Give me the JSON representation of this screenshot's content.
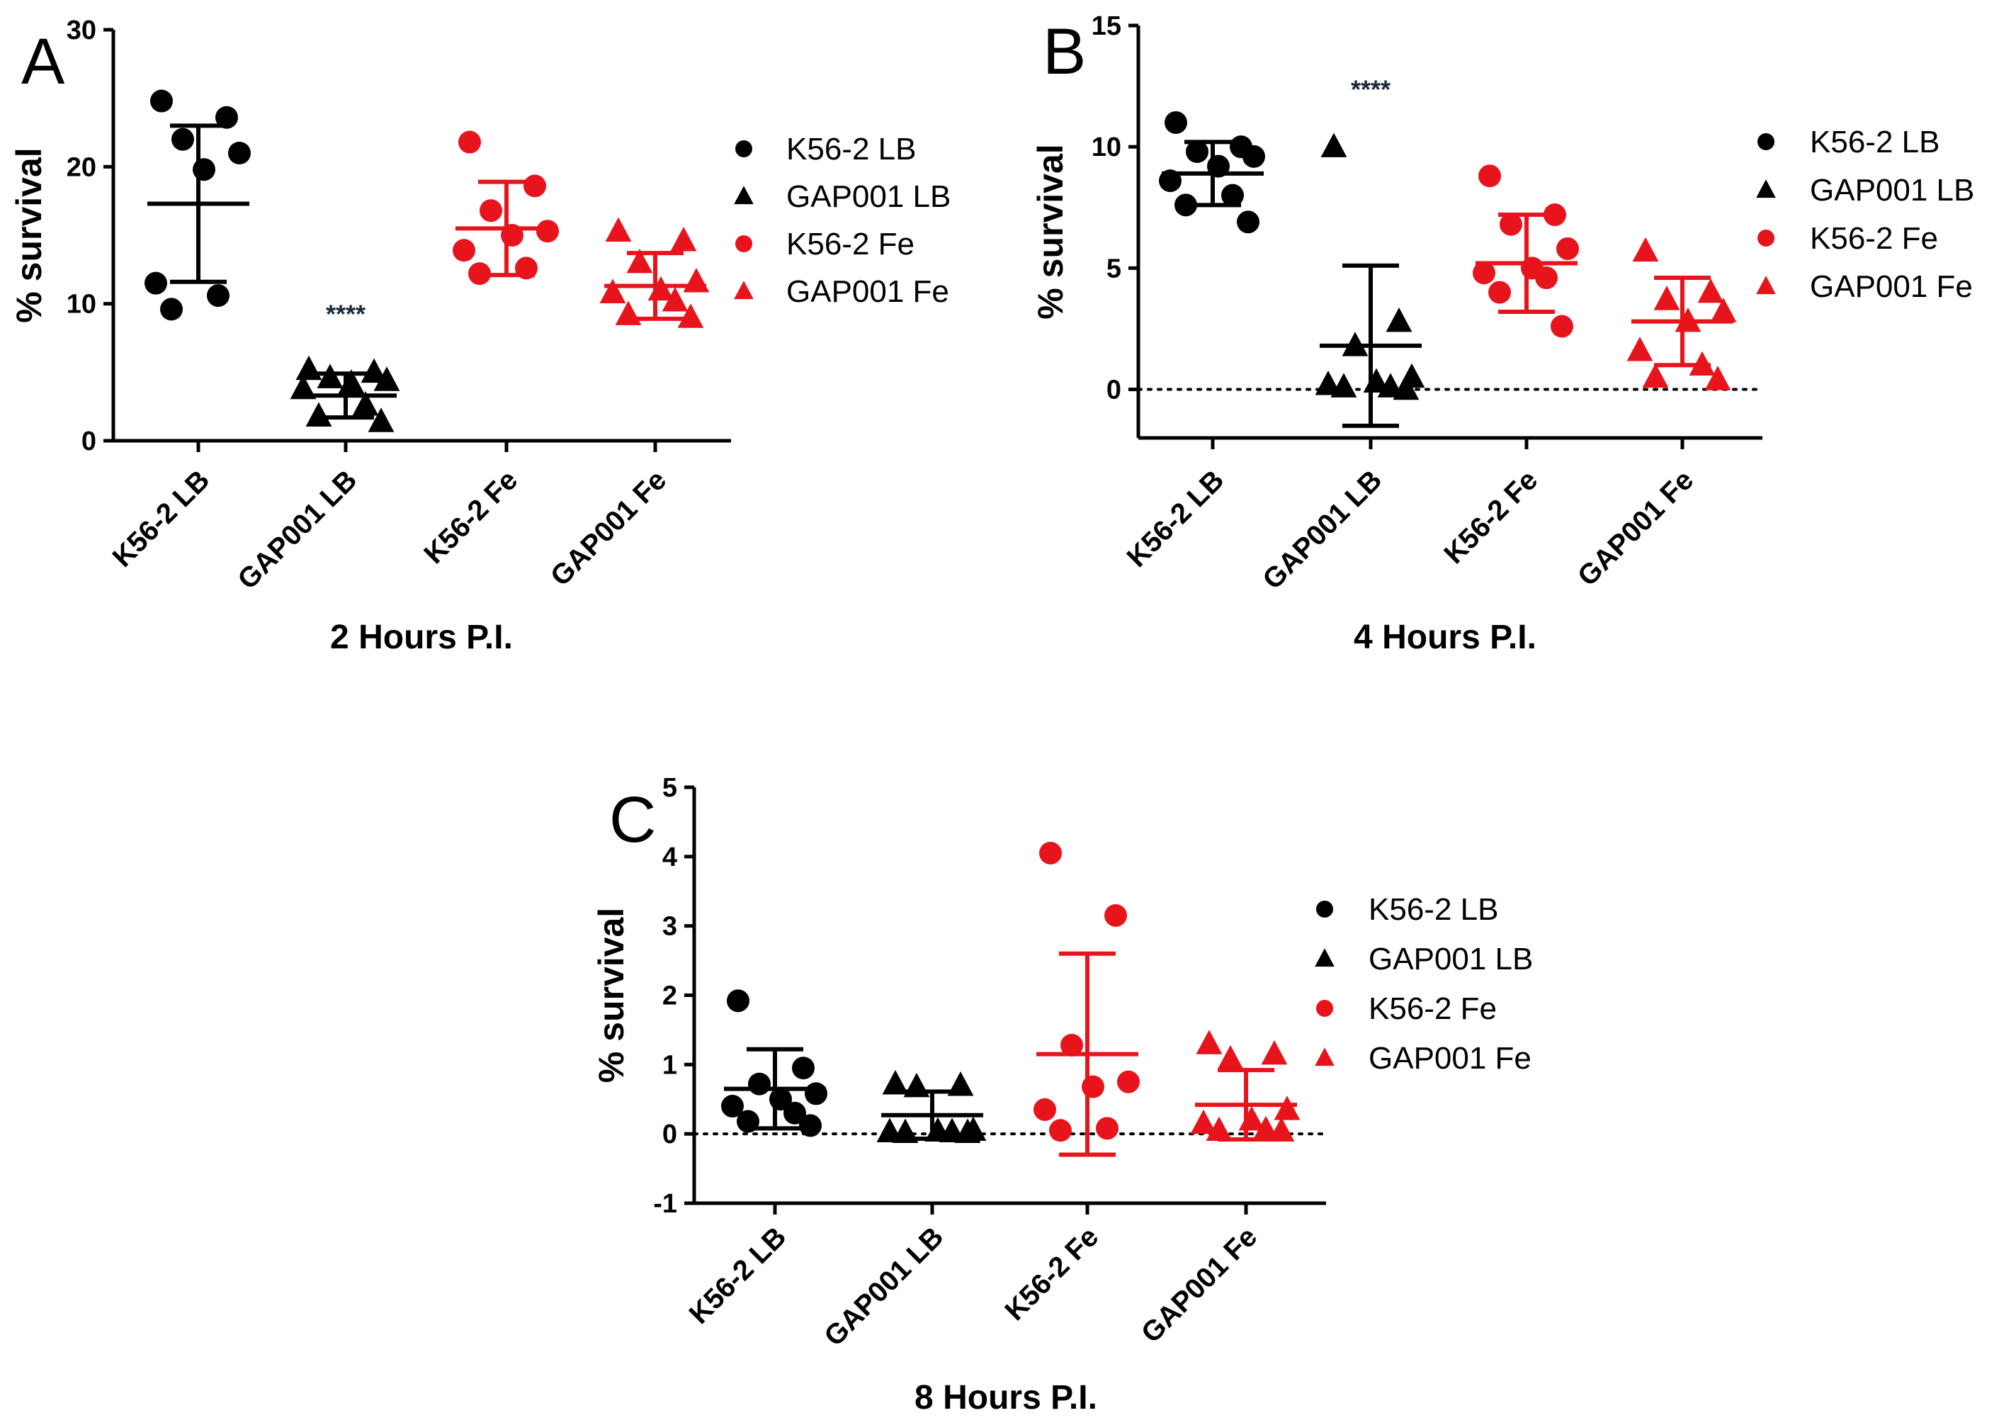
{
  "figure": {
    "colors": {
      "lb": "#000000",
      "fe": "#e8141b",
      "stars": "#1a2a3a"
    }
  },
  "chart_data": [
    {
      "panel_letter": "A",
      "type": "scatter",
      "title": "2 Hours P.I.",
      "xlabel": "2 Hours P.I.",
      "ylabel": "% survival",
      "ylim": [
        0,
        30
      ],
      "yticks": [
        0,
        10,
        20,
        30
      ],
      "zero_reference_line": false,
      "categories": [
        "K56-2 LB",
        "GAP001 LB",
        "K56-2  Fe",
        "GAP001 Fe"
      ],
      "legend": [
        "K56-2 LB",
        "GAP001 LB",
        "K56-2  Fe",
        "GAP001 Fe"
      ],
      "significance": [
        {
          "category": "GAP001 LB",
          "label": "****",
          "y": 8.6
        }
      ],
      "series": [
        {
          "name": "K56-2 LB",
          "color": "#000000",
          "marker": "circle",
          "mean": 17.3,
          "sd": 5.7,
          "values": [
            24.8,
            23.6,
            22.0,
            21.0,
            19.8,
            11.5,
            10.6,
            9.6
          ]
        },
        {
          "name": "GAP001 LB",
          "color": "#000000",
          "marker": "triangle",
          "mean": 3.3,
          "sd": 1.6,
          "values": [
            5.2,
            5.0,
            4.6,
            4.4,
            4.2,
            3.8,
            2.6,
            1.8,
            1.4
          ]
        },
        {
          "name": "K56-2  Fe",
          "color": "#e8141b",
          "marker": "circle",
          "mean": 15.5,
          "sd": 3.4,
          "values": [
            21.8,
            18.6,
            16.8,
            15.3,
            15.0,
            13.9,
            12.6,
            12.2
          ]
        },
        {
          "name": "GAP001 Fe",
          "color": "#e8141b",
          "marker": "triangle",
          "mean": 11.3,
          "sd": 2.4,
          "values": [
            15.3,
            14.6,
            13.0,
            11.6,
            11.0,
            10.8,
            10.2,
            9.2,
            9.0
          ]
        }
      ]
    },
    {
      "panel_letter": "B",
      "type": "scatter",
      "title": "4 Hours P.I.",
      "xlabel": "4 Hours P.I.",
      "ylabel": "% survival",
      "ylim": [
        -2,
        15
      ],
      "yticks": [
        0,
        5,
        10,
        15
      ],
      "zero_reference_line": true,
      "categories": [
        "K56-2 LB",
        "GAP001 LB",
        "K56-2 Fe",
        "GAP001 Fe"
      ],
      "legend": [
        "K56-2 LB",
        "GAP001 LB",
        "K56-2 Fe",
        "GAP001 Fe"
      ],
      "significance": [
        {
          "category": "GAP001 LB",
          "label": "****",
          "y": 12.0
        }
      ],
      "series": [
        {
          "name": "K56-2 LB",
          "color": "#000000",
          "marker": "circle",
          "mean": 8.9,
          "sd": 1.3,
          "values": [
            11.0,
            10.0,
            9.8,
            9.6,
            9.2,
            8.6,
            8.0,
            7.6,
            6.9
          ]
        },
        {
          "name": "GAP001 LB",
          "color": "#000000",
          "marker": "triangle",
          "mean": 1.8,
          "sd": 3.3,
          "values": [
            10.0,
            2.8,
            1.8,
            0.5,
            0.3,
            0.2,
            0.1,
            0.1,
            0.0
          ]
        },
        {
          "name": "K56-2 Fe",
          "color": "#e8141b",
          "marker": "circle",
          "mean": 5.2,
          "sd": 2.0,
          "values": [
            8.8,
            7.2,
            6.8,
            5.8,
            5.0,
            4.8,
            4.6,
            4.0,
            2.6
          ]
        },
        {
          "name": "GAP001 Fe",
          "color": "#e8141b",
          "marker": "triangle",
          "mean": 2.8,
          "sd": 1.8,
          "values": [
            5.7,
            4.0,
            3.7,
            3.2,
            2.8,
            1.6,
            1.0,
            0.5,
            0.4
          ]
        }
      ]
    },
    {
      "panel_letter": "C",
      "type": "scatter",
      "title": "8 Hours P.I.",
      "xlabel": "8 Hours P.I.",
      "ylabel": "% survival",
      "ylim": [
        -1,
        5
      ],
      "yticks": [
        -1,
        0,
        1,
        2,
        3,
        4,
        5
      ],
      "zero_reference_line": true,
      "categories": [
        "K56-2 LB",
        "GAP001 LB",
        "K56-2 Fe",
        "GAP001 Fe"
      ],
      "legend": [
        "K56-2 LB",
        "GAP001 LB",
        "K56-2 Fe",
        "GAP001 Fe"
      ],
      "significance": [],
      "series": [
        {
          "name": "K56-2 LB",
          "color": "#000000",
          "marker": "circle",
          "mean": 0.65,
          "sd": 0.57,
          "values": [
            1.92,
            0.95,
            0.72,
            0.58,
            0.5,
            0.4,
            0.3,
            0.18,
            0.12
          ]
        },
        {
          "name": "GAP001 LB",
          "color": "#000000",
          "marker": "triangle",
          "mean": 0.27,
          "sd": 0.34,
          "values": [
            0.72,
            0.7,
            0.68,
            0.05,
            0.04,
            0.03,
            0.03,
            0.02,
            0.02
          ]
        },
        {
          "name": "K56-2 Fe",
          "color": "#e8141b",
          "marker": "circle",
          "mean": 1.15,
          "sd": 1.45,
          "values": [
            4.05,
            3.15,
            1.28,
            0.75,
            0.68,
            0.35,
            0.08,
            0.05
          ]
        },
        {
          "name": "GAP001 Fe",
          "color": "#e8141b",
          "marker": "triangle",
          "mean": 0.42,
          "sd": 0.5,
          "values": [
            1.3,
            1.15,
            1.08,
            0.35,
            0.2,
            0.15,
            0.06,
            0.05,
            0.04
          ]
        }
      ]
    }
  ]
}
